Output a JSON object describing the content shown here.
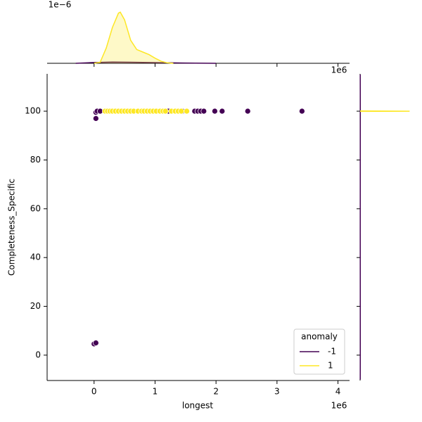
{
  "chart_data": {
    "type": "scatter",
    "x_label": "longest",
    "y_label": "Completeness_Specific",
    "x_offset_label": "1e6",
    "top_offset_label": "1e−6",
    "xlim": [
      -770000,
      4190000
    ],
    "xticks": [
      0,
      {
        "value": 1000000,
        "label": "1"
      },
      {
        "value": 2000000,
        "label": "2"
      },
      {
        "value": 3000000,
        "label": "3"
      },
      {
        "value": 4000000,
        "label": "4"
      }
    ],
    "ylim": [
      -10.4,
      115.3
    ],
    "yticks": [
      0,
      20,
      40,
      60,
      80,
      100
    ],
    "legend": {
      "title": "anomaly",
      "position": "lower right"
    },
    "series": [
      {
        "name": "-1",
        "color": "#440154",
        "x": [
          0,
          30000,
          30000,
          30000,
          50000,
          100000,
          1220000,
          1450000,
          1650000,
          1700000,
          1750000,
          1800000,
          1980000,
          2100000,
          2520000,
          3410000
        ],
        "values": [
          4.6,
          5,
          97,
          99.5,
          100,
          100,
          100,
          100,
          100,
          100,
          100,
          100,
          100,
          100,
          100,
          100
        ]
      },
      {
        "name": "1",
        "color": "#fde725",
        "x": [
          180000,
          220000,
          260000,
          300000,
          350000,
          400000,
          450000,
          500000,
          550000,
          600000,
          650000,
          720000,
          780000,
          820000,
          870000,
          920000,
          970000,
          1020000,
          1080000,
          1130000,
          1170000,
          1270000,
          1330000,
          1380000,
          1430000,
          1520000
        ],
        "values": [
          100,
          100,
          100,
          100,
          100,
          100,
          100,
          100,
          100,
          100,
          100,
          100,
          100,
          100,
          100,
          100,
          100,
          100,
          100,
          100,
          100,
          100,
          100,
          100,
          100,
          100
        ]
      }
    ],
    "top_marginal": {
      "type": "kde",
      "ylim": [
        0,
        1.1e-06
      ],
      "series": [
        {
          "color": "#440154",
          "x": [
            -300000,
            0,
            300000,
            600000,
            900000,
            1200000,
            1500000,
            2000000
          ],
          "values": [
            0,
            1.5e-08,
            2.5e-08,
            2e-08,
            1.5e-08,
            1e-08,
            5e-09,
            0
          ]
        },
        {
          "color": "#fde725",
          "x": [
            0,
            100000,
            200000,
            300000,
            400000,
            430000,
            500000,
            600000,
            700000,
            800000,
            900000,
            1000000,
            1100000,
            1200000,
            1300000
          ],
          "values": [
            0,
            2e-08,
            3e-07,
            7e-07,
            9.8e-07,
            1e-06,
            8.5e-07,
            4.5e-07,
            2.7e-07,
            2.2e-07,
            1.7e-07,
            1e-07,
            4e-08,
            1e-08,
            0
          ]
        }
      ]
    },
    "right_marginal": {
      "type": "kde",
      "xlim": [
        0,
        1
      ],
      "series": [
        {
          "color": "#440154",
          "y": [
            -10,
            5,
            50,
            100,
            115
          ],
          "values": [
            0.002,
            0.004,
            0.002,
            0.004,
            0.002
          ]
        },
        {
          "color": "#fde725",
          "y": [
            99.9,
            100,
            100.1
          ],
          "values": [
            0,
            0.88,
            0
          ]
        }
      ]
    }
  }
}
